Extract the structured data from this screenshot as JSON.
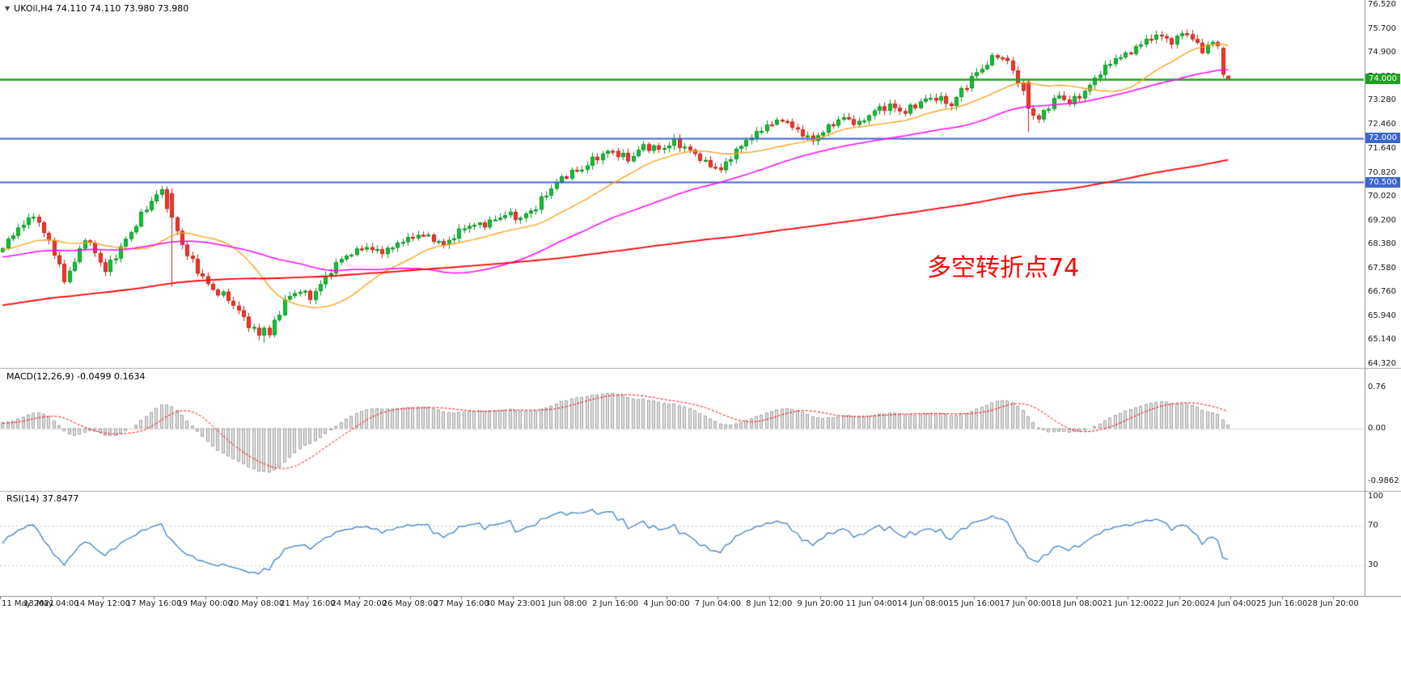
{
  "header": {
    "symbol": "UKOil",
    "timeframe": "H4",
    "open": "74.110",
    "high": "74.110",
    "low": "73.980",
    "close": "73.980",
    "display": "UKOil,H4  74.110 74.110 73.980 73.980"
  },
  "chart_data": {
    "type": "candlestick",
    "symbol": "UKOil",
    "timeframe": "H4",
    "current_ohlc": {
      "open": 74.11,
      "high": 74.11,
      "low": 73.98,
      "close": 73.98
    },
    "y_range": [
      64.19,
      76.63
    ],
    "y_axis_ticks": [
      "76.520",
      "75.700",
      "74.900",
      "74.080",
      "73.280",
      "72.460",
      "71.640",
      "70.820",
      "70.020",
      "69.200",
      "68.380",
      "67.580",
      "66.760",
      "65.940",
      "65.140",
      "64.320"
    ],
    "time_labels": [
      "11 May 2021",
      "13 May 04:00",
      "14 May 12:00",
      "17 May 16:00",
      "19 May 00:00",
      "20 May 08:00",
      "21 May 16:00",
      "24 May 20:00",
      "26 May 08:00",
      "27 May 16:00",
      "30 May 23:00",
      "1 Jun 08:00",
      "2 Jun 16:00",
      "4 Jun 00:00",
      "7 Jun 04:00",
      "8 Jun 12:00",
      "9 Jun 20:00",
      "11 Jun 04:00",
      "14 Jun 08:00",
      "15 Jun 16:00",
      "17 Jun 00:00",
      "18 Jun 08:00",
      "21 Jun 12:00",
      "22 Jun 20:00",
      "24 Jun 04:00",
      "25 Jun 16:00",
      "28 Jun 20:00"
    ],
    "slots": 266,
    "label_step": 10,
    "candle_count": 240,
    "anchors": [
      [
        0,
        68.3
      ],
      [
        3,
        68.9
      ],
      [
        6,
        69.42
      ],
      [
        9,
        68.5
      ],
      [
        12,
        67.15
      ],
      [
        14,
        67.8
      ],
      [
        16,
        68.65
      ],
      [
        18,
        68.1
      ],
      [
        20,
        67.45
      ],
      [
        23,
        68.3
      ],
      [
        26,
        69.1
      ],
      [
        29,
        69.85
      ],
      [
        31,
        70.2
      ],
      [
        33,
        69.3
      ],
      [
        36,
        68.0
      ],
      [
        40,
        67.0
      ],
      [
        44,
        66.55
      ],
      [
        47,
        65.85
      ],
      [
        50,
        65.3
      ],
      [
        52,
        65.35
      ],
      [
        55,
        66.45
      ],
      [
        58,
        66.85
      ],
      [
        60,
        66.6
      ],
      [
        63,
        67.25
      ],
      [
        66,
        67.9
      ],
      [
        70,
        68.3
      ],
      [
        74,
        68.1
      ],
      [
        78,
        68.55
      ],
      [
        82,
        68.7
      ],
      [
        86,
        68.4
      ],
      [
        90,
        68.95
      ],
      [
        94,
        69.1
      ],
      [
        98,
        69.4
      ],
      [
        101,
        69.25
      ],
      [
        104,
        69.7
      ],
      [
        107,
        70.3
      ],
      [
        110,
        70.75
      ],
      [
        113,
        71.0
      ],
      [
        116,
        71.35
      ],
      [
        119,
        71.55
      ],
      [
        122,
        71.3
      ],
      [
        125,
        71.7
      ],
      [
        128,
        71.6
      ],
      [
        131,
        71.9
      ],
      [
        134,
        71.55
      ],
      [
        137,
        71.15
      ],
      [
        140,
        70.95
      ],
      [
        143,
        71.55
      ],
      [
        146,
        72.05
      ],
      [
        149,
        72.45
      ],
      [
        152,
        72.6
      ],
      [
        155,
        72.25
      ],
      [
        158,
        71.95
      ],
      [
        161,
        72.35
      ],
      [
        164,
        72.7
      ],
      [
        167,
        72.5
      ],
      [
        170,
        72.9
      ],
      [
        173,
        73.1
      ],
      [
        176,
        72.9
      ],
      [
        179,
        73.2
      ],
      [
        182,
        73.4
      ],
      [
        185,
        73.15
      ],
      [
        188,
        73.8
      ],
      [
        191,
        74.4
      ],
      [
        194,
        74.85
      ],
      [
        196,
        74.55
      ],
      [
        198,
        73.95
      ],
      [
        200,
        73.0
      ],
      [
        202,
        72.65
      ],
      [
        204,
        73.1
      ],
      [
        206,
        73.4
      ],
      [
        208,
        73.2
      ],
      [
        211,
        73.6
      ],
      [
        214,
        74.2
      ],
      [
        217,
        74.7
      ],
      [
        220,
        74.95
      ],
      [
        223,
        75.3
      ],
      [
        226,
        75.5
      ],
      [
        228,
        75.25
      ],
      [
        230,
        75.6
      ],
      [
        232,
        75.35
      ],
      [
        234,
        74.95
      ],
      [
        236,
        75.3
      ],
      [
        237,
        75.15
      ],
      [
        238,
        74.15
      ],
      [
        239,
        73.98
      ]
    ],
    "special_candles": [
      {
        "i": 33,
        "o": 70.12,
        "h": 70.3,
        "l": 66.95,
        "c": 69.3
      },
      {
        "i": 50,
        "o": 65.55,
        "h": 65.7,
        "l": 65.14,
        "c": 65.3
      },
      {
        "i": 51,
        "o": 65.3,
        "h": 65.62,
        "l": 65.05,
        "c": 65.55
      },
      {
        "i": 200,
        "o": 73.9,
        "h": 73.95,
        "l": 72.2,
        "c": 73.0
      },
      {
        "i": 238,
        "o": 75.05,
        "h": 75.1,
        "l": 74.05,
        "c": 74.15
      },
      {
        "i": 239,
        "o": 74.11,
        "h": 74.11,
        "l": 73.98,
        "c": 73.98
      }
    ],
    "hlines": [
      {
        "price": 74.0,
        "label": "74.000",
        "color": "#1ea21e",
        "width": 2.6
      },
      {
        "price": 72.0,
        "label": "72.000",
        "color": "#3c66cc",
        "width": 2
      },
      {
        "price": 70.5,
        "label": "70.500",
        "color": "#3c66cc",
        "width": 2
      }
    ],
    "moving_averages": [
      {
        "name": "ma-fast",
        "period": 21,
        "color": "#f7a21b",
        "width": 1.4
      },
      {
        "name": "ma-mid",
        "period": 55,
        "color": "#ff00ff",
        "width": 1.5
      },
      {
        "name": "ma-slow",
        "period": 200,
        "color": "#ff0000",
        "width": 1.8
      }
    ],
    "annotation": {
      "text": "多空转折点74",
      "color": "#ff0000"
    },
    "indicators": {
      "macd": {
        "name": "MACD",
        "params": [
          12,
          26,
          9
        ],
        "display": "MACD(12,26,9) -0.0499 0.1634",
        "main_value": "-0.0499",
        "signal_value": "0.1634",
        "axis_ticks": [
          "0.76",
          "0.00",
          "-0.9862"
        ]
      },
      "rsi": {
        "name": "RSI",
        "period": 14,
        "display": "RSI(14) 37.8477",
        "value": "37.8477",
        "axis_ticks": [
          "100",
          "70",
          "30"
        ],
        "levels": [
          70,
          30
        ]
      }
    },
    "colors": {
      "background": "#ffffff",
      "bull": "#10c433",
      "bull_dark": "#0a9425",
      "bear": "#f3382b",
      "bear_dark": "#c2221a",
      "macd_hist_fill": "#e3e3e3",
      "macd_hist_stroke": "#9f9f9f",
      "macd_signal": "#ff0000",
      "rsi": "#3f7fc4",
      "separator": "#a8a8a8",
      "axis_text": "#1a1a1a"
    }
  }
}
